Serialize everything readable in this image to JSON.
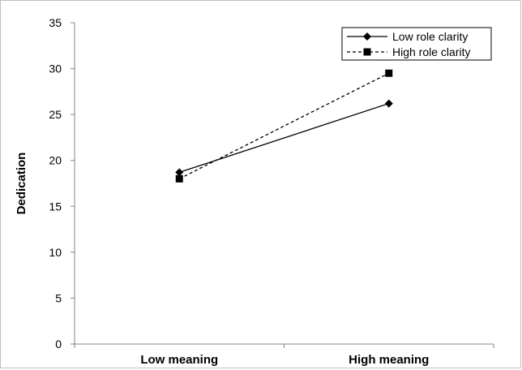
{
  "chart_data": {
    "type": "line",
    "title": "",
    "xlabel": "",
    "ylabel": "Dedication",
    "categories": [
      "Low meaning",
      "High meaning"
    ],
    "ylim": [
      0,
      35
    ],
    "yticks": [
      0,
      5,
      10,
      15,
      20,
      25,
      30,
      35
    ],
    "grid": false,
    "legend_position": "top-right",
    "series": [
      {
        "name": "Low role clarity",
        "values": [
          18.7,
          26.2
        ],
        "marker": "diamond",
        "line_style": "solid",
        "color": "#000000"
      },
      {
        "name": "High role clarity",
        "values": [
          18.0,
          29.5
        ],
        "marker": "square",
        "line_style": "dashed",
        "color": "#000000"
      }
    ]
  }
}
